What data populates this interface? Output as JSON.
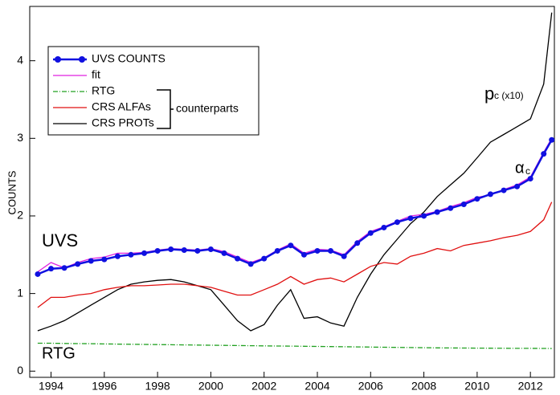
{
  "chart_data": {
    "type": "line",
    "y_label": "COUNTS",
    "x": [
      1993.5,
      1994,
      1994.5,
      1995,
      1995.5,
      1996,
      1996.5,
      1997,
      1997.5,
      1998,
      1998.5,
      1999,
      1999.5,
      2000,
      2000.5,
      2001,
      2001.5,
      2002,
      2002.5,
      2003,
      2003.5,
      2004,
      2004.5,
      2005,
      2005.5,
      2006,
      2006.5,
      2007,
      2007.5,
      2008,
      2008.5,
      2009,
      2009.5,
      2010,
      2010.5,
      2011,
      2011.5,
      2012,
      2012.5,
      2012.8
    ],
    "series": [
      {
        "name": "UVS COUNTS",
        "color": "#1010e0",
        "style": "dots",
        "values": [
          1.25,
          1.32,
          1.33,
          1.38,
          1.42,
          1.44,
          1.48,
          1.5,
          1.52,
          1.55,
          1.57,
          1.56,
          1.55,
          1.57,
          1.52,
          1.45,
          1.38,
          1.45,
          1.55,
          1.62,
          1.5,
          1.55,
          1.55,
          1.48,
          1.65,
          1.78,
          1.85,
          1.92,
          1.97,
          2.0,
          2.05,
          2.1,
          2.15,
          2.22,
          2.28,
          2.33,
          2.38,
          2.48,
          2.8,
          2.98
        ]
      },
      {
        "name": "fit",
        "color": "#e020e0",
        "style": "solid",
        "values": [
          1.28,
          1.4,
          1.33,
          1.4,
          1.45,
          1.47,
          1.52,
          1.52,
          1.53,
          1.56,
          1.58,
          1.57,
          1.56,
          1.58,
          1.54,
          1.47,
          1.4,
          1.46,
          1.56,
          1.64,
          1.52,
          1.57,
          1.56,
          1.5,
          1.67,
          1.8,
          1.86,
          1.93,
          2.0,
          2.02,
          2.06,
          2.12,
          2.17,
          2.24,
          2.27,
          2.34,
          2.4,
          2.5,
          2.82,
          3.0
        ]
      },
      {
        "name": "RTG",
        "color": "#20a020",
        "style": "dashdot",
        "values": [
          0.36,
          0.36,
          0.357,
          0.355,
          0.353,
          0.35,
          0.348,
          0.346,
          0.344,
          0.342,
          0.34,
          0.338,
          0.336,
          0.334,
          0.332,
          0.33,
          0.328,
          0.326,
          0.324,
          0.322,
          0.32,
          0.318,
          0.316,
          0.314,
          0.312,
          0.31,
          0.308,
          0.306,
          0.304,
          0.302,
          0.3,
          0.299,
          0.298,
          0.297,
          0.296,
          0.295,
          0.294,
          0.293,
          0.292,
          0.291
        ]
      },
      {
        "name": "CRS ALFAs",
        "color": "#e01010",
        "style": "solid",
        "values": [
          0.82,
          0.95,
          0.95,
          0.98,
          1.0,
          1.05,
          1.08,
          1.1,
          1.1,
          1.11,
          1.12,
          1.12,
          1.1,
          1.08,
          1.03,
          0.98,
          0.98,
          1.05,
          1.12,
          1.22,
          1.12,
          1.18,
          1.2,
          1.15,
          1.25,
          1.35,
          1.4,
          1.38,
          1.48,
          1.52,
          1.58,
          1.55,
          1.62,
          1.65,
          1.68,
          1.72,
          1.75,
          1.8,
          1.95,
          2.18
        ]
      },
      {
        "name": "CRS PROTs",
        "color": "#000000",
        "style": "solid",
        "values": [
          0.52,
          0.58,
          0.65,
          0.75,
          0.85,
          0.95,
          1.05,
          1.12,
          1.15,
          1.17,
          1.18,
          1.15,
          1.1,
          1.05,
          0.85,
          0.65,
          0.52,
          0.6,
          0.85,
          1.05,
          0.68,
          0.7,
          0.62,
          0.58,
          0.95,
          1.25,
          1.5,
          1.7,
          1.9,
          2.05,
          2.25,
          2.4,
          2.55,
          2.75,
          2.95,
          3.05,
          3.15,
          3.25,
          3.7,
          4.62
        ]
      }
    ],
    "annotations": [
      {
        "text": "UVS",
        "color": "#1010e0"
      },
      {
        "text": "RTG",
        "color": "#107040"
      },
      {
        "text": "p",
        "color": "#000000"
      },
      {
        "text": "c (x10)",
        "color": "#000000"
      },
      {
        "text": "α",
        "color": "#e01010"
      },
      {
        "text": "c",
        "color": "#e01010"
      },
      {
        "text": "counterparts",
        "color": "#000000"
      }
    ],
    "xlim": [
      1993.2,
      2012.9
    ],
    "xticks": [
      1994,
      1996,
      1998,
      2000,
      2002,
      2004,
      2006,
      2008,
      2010,
      2012
    ],
    "ylim": [
      -0.08,
      4.7
    ],
    "yticks": [
      0,
      1,
      2,
      3,
      4
    ]
  }
}
